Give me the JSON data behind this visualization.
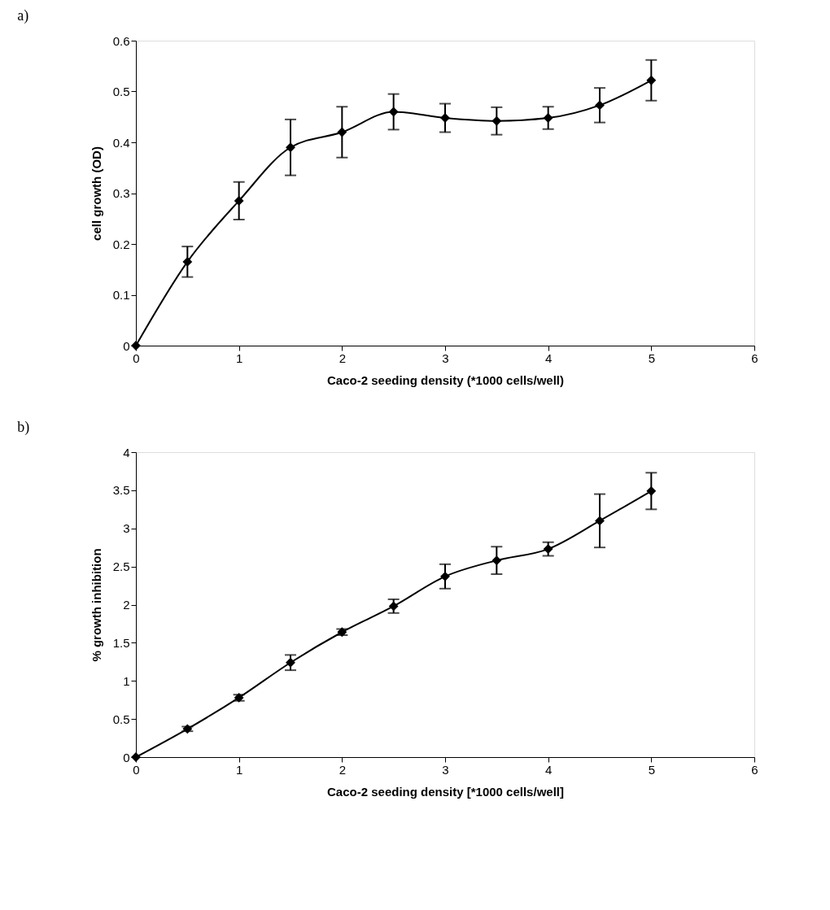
{
  "chart_data": [
    {
      "type": "line",
      "title": "a)",
      "xlabel": "Caco-2 seeding density (*1000 cells/well)",
      "ylabel": "cell growth (OD)",
      "x": [
        0,
        0.5,
        1,
        1.5,
        2,
        2.5,
        3,
        3.5,
        4,
        4.5,
        5
      ],
      "series": [
        {
          "color": "#000000",
          "values": [
            0,
            0.165,
            0.285,
            0.39,
            0.42,
            0.46,
            0.448,
            0.442,
            0.448,
            0.473,
            0.522
          ],
          "errors": [
            null,
            0.03,
            0.037,
            0.055,
            0.05,
            0.035,
            0.028,
            0.027,
            0.022,
            0.034,
            0.04
          ]
        }
      ],
      "xlim": [
        0,
        6
      ],
      "xticks": [
        0,
        1,
        2,
        3,
        4,
        5,
        6
      ],
      "ylim": [
        0,
        0.6
      ],
      "yticks": [
        0,
        0.1,
        0.2,
        0.3,
        0.4,
        0.5,
        0.6
      ],
      "grid": false,
      "marker": "diamond",
      "line_style": "solid"
    },
    {
      "type": "line",
      "title": "b)",
      "xlabel": "Caco-2 seeding density [*1000 cells/well]",
      "ylabel": "% growth inhibition",
      "x": [
        0,
        0.5,
        1,
        1.5,
        2,
        2.5,
        3,
        3.5,
        4,
        4.5,
        5
      ],
      "series": [
        {
          "color": "#000000",
          "values": [
            0,
            0.37,
            0.78,
            1.24,
            1.64,
            1.98,
            2.37,
            2.58,
            2.73,
            3.1,
            3.49
          ],
          "errors": [
            null,
            0.03,
            0.04,
            0.1,
            0.04,
            0.09,
            0.16,
            0.18,
            0.09,
            0.35,
            0.24
          ]
        }
      ],
      "xlim": [
        0,
        6
      ],
      "xticks": [
        0,
        1,
        2,
        3,
        4,
        5,
        6
      ],
      "ylim": [
        0,
        4
      ],
      "yticks": [
        0,
        0.5,
        1,
        1.5,
        2,
        2.5,
        3,
        3.5,
        4
      ],
      "grid": false,
      "marker": "diamond",
      "line_style": "solid"
    }
  ]
}
